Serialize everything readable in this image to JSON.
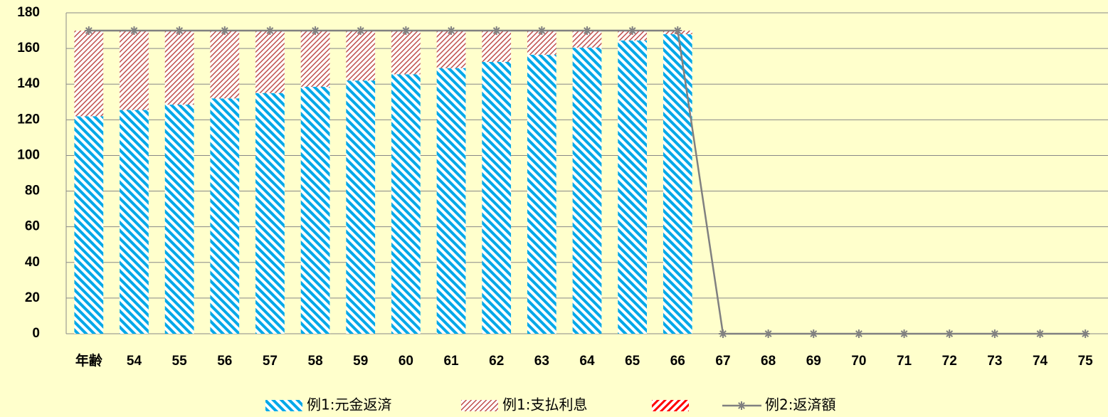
{
  "chart_data": {
    "type": "bar",
    "stacked": true,
    "categories": [
      "年齢",
      "54",
      "55",
      "56",
      "57",
      "58",
      "59",
      "60",
      "61",
      "62",
      "63",
      "64",
      "65",
      "66",
      "67",
      "68",
      "69",
      "70",
      "71",
      "72",
      "73",
      "74",
      "75"
    ],
    "series": [
      {
        "name": "例1:元金返済",
        "color": "#00a8e8",
        "type": "bar",
        "values": [
          122,
          125.5,
          128.5,
          132,
          135,
          138.5,
          142,
          145.5,
          149,
          152.5,
          156.5,
          160.5,
          164.5,
          168,
          null,
          null,
          null,
          null,
          null,
          null,
          null,
          null,
          null
        ]
      },
      {
        "name": "例1:支払利息",
        "color": "#c0504d",
        "type": "bar",
        "values": [
          48,
          44.5,
          41.5,
          38,
          35,
          31.5,
          28,
          24.5,
          21,
          17.5,
          13.5,
          9.5,
          5.5,
          2,
          null,
          null,
          null,
          null,
          null,
          null,
          null,
          null,
          null
        ]
      },
      {
        "name": "例2:返済額",
        "color": "#808080",
        "type": "line",
        "values": [
          170,
          170,
          170,
          170,
          170,
          170,
          170,
          170,
          170,
          170,
          170,
          170,
          170,
          170,
          0,
          0,
          0,
          0,
          0,
          0,
          0,
          0,
          0
        ]
      }
    ],
    "ylim": [
      0,
      180
    ],
    "yticks": [
      0,
      20,
      40,
      60,
      80,
      100,
      120,
      140,
      160,
      180
    ],
    "grid": true
  }
}
